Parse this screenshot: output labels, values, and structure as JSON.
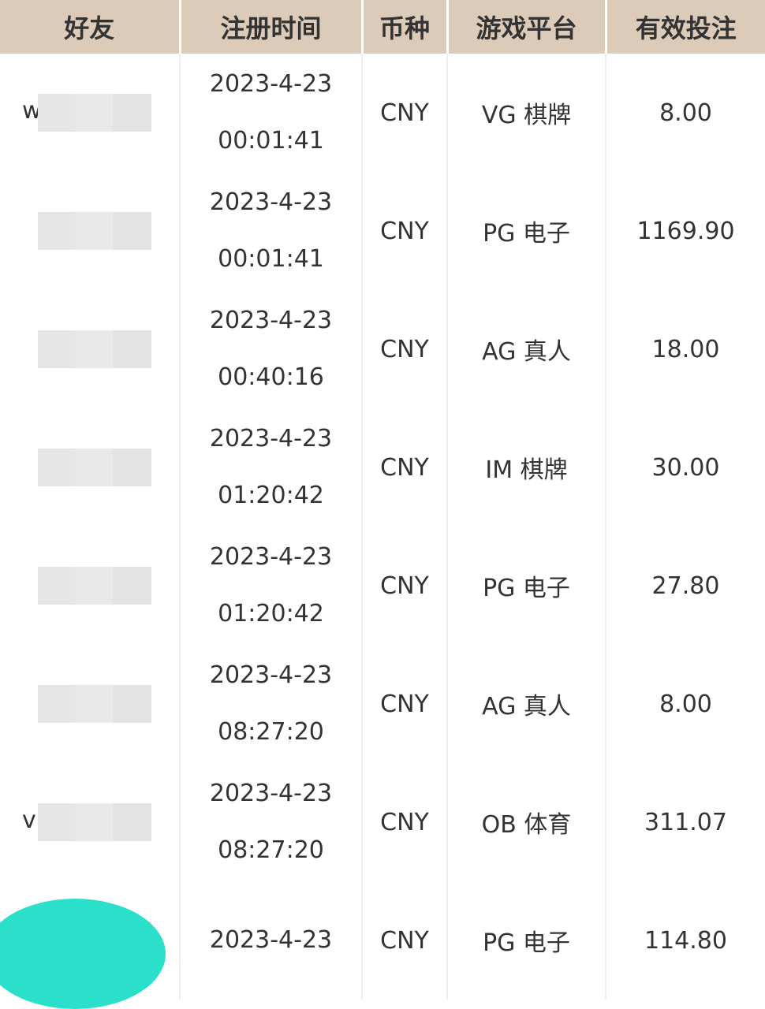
{
  "headers": [
    "好友",
    "注册时间",
    "币种",
    "游戏平台",
    "有效投注"
  ],
  "rows": [
    {
      "friend": "wx1",
      "date": "2023-4-23",
      "time": "00:01:41",
      "currency": "CNY",
      "platform": "VG 棋牌",
      "bet": "8.00"
    },
    {
      "friend": "",
      "date": "2023-4-23",
      "time": "00:01:41",
      "currency": "CNY",
      "platform": "PG 电子",
      "bet": "1169.90"
    },
    {
      "friend": "",
      "date": "2023-4-23",
      "time": "00:40:16",
      "currency": "CNY",
      "platform": "AG 真人",
      "bet": "18.00"
    },
    {
      "friend": "",
      "date": "2023-4-23",
      "time": "01:20:42",
      "currency": "CNY",
      "platform": "IM 棋牌",
      "bet": "30.00"
    },
    {
      "friend": "",
      "date": "2023-4-23",
      "time": "01:20:42",
      "currency": "CNY",
      "platform": "PG 电子",
      "bet": "27.80"
    },
    {
      "friend": "",
      "date": "2023-4-23",
      "time": "08:27:20",
      "currency": "CNY",
      "platform": "AG 真人",
      "bet": "8.00"
    },
    {
      "friend": "v",
      "date": "2023-4-23",
      "time": "08:27:20",
      "currency": "CNY",
      "platform": "OB 体育",
      "bet": "311.07"
    },
    {
      "friend": "",
      "date": "2023-4-23",
      "time": "",
      "currency": "CNY",
      "platform": "PG 电子",
      "bet": "114.80"
    }
  ],
  "colors": {
    "header_bg": "#dccbb9",
    "accent_blob": "#2ae0cb"
  }
}
